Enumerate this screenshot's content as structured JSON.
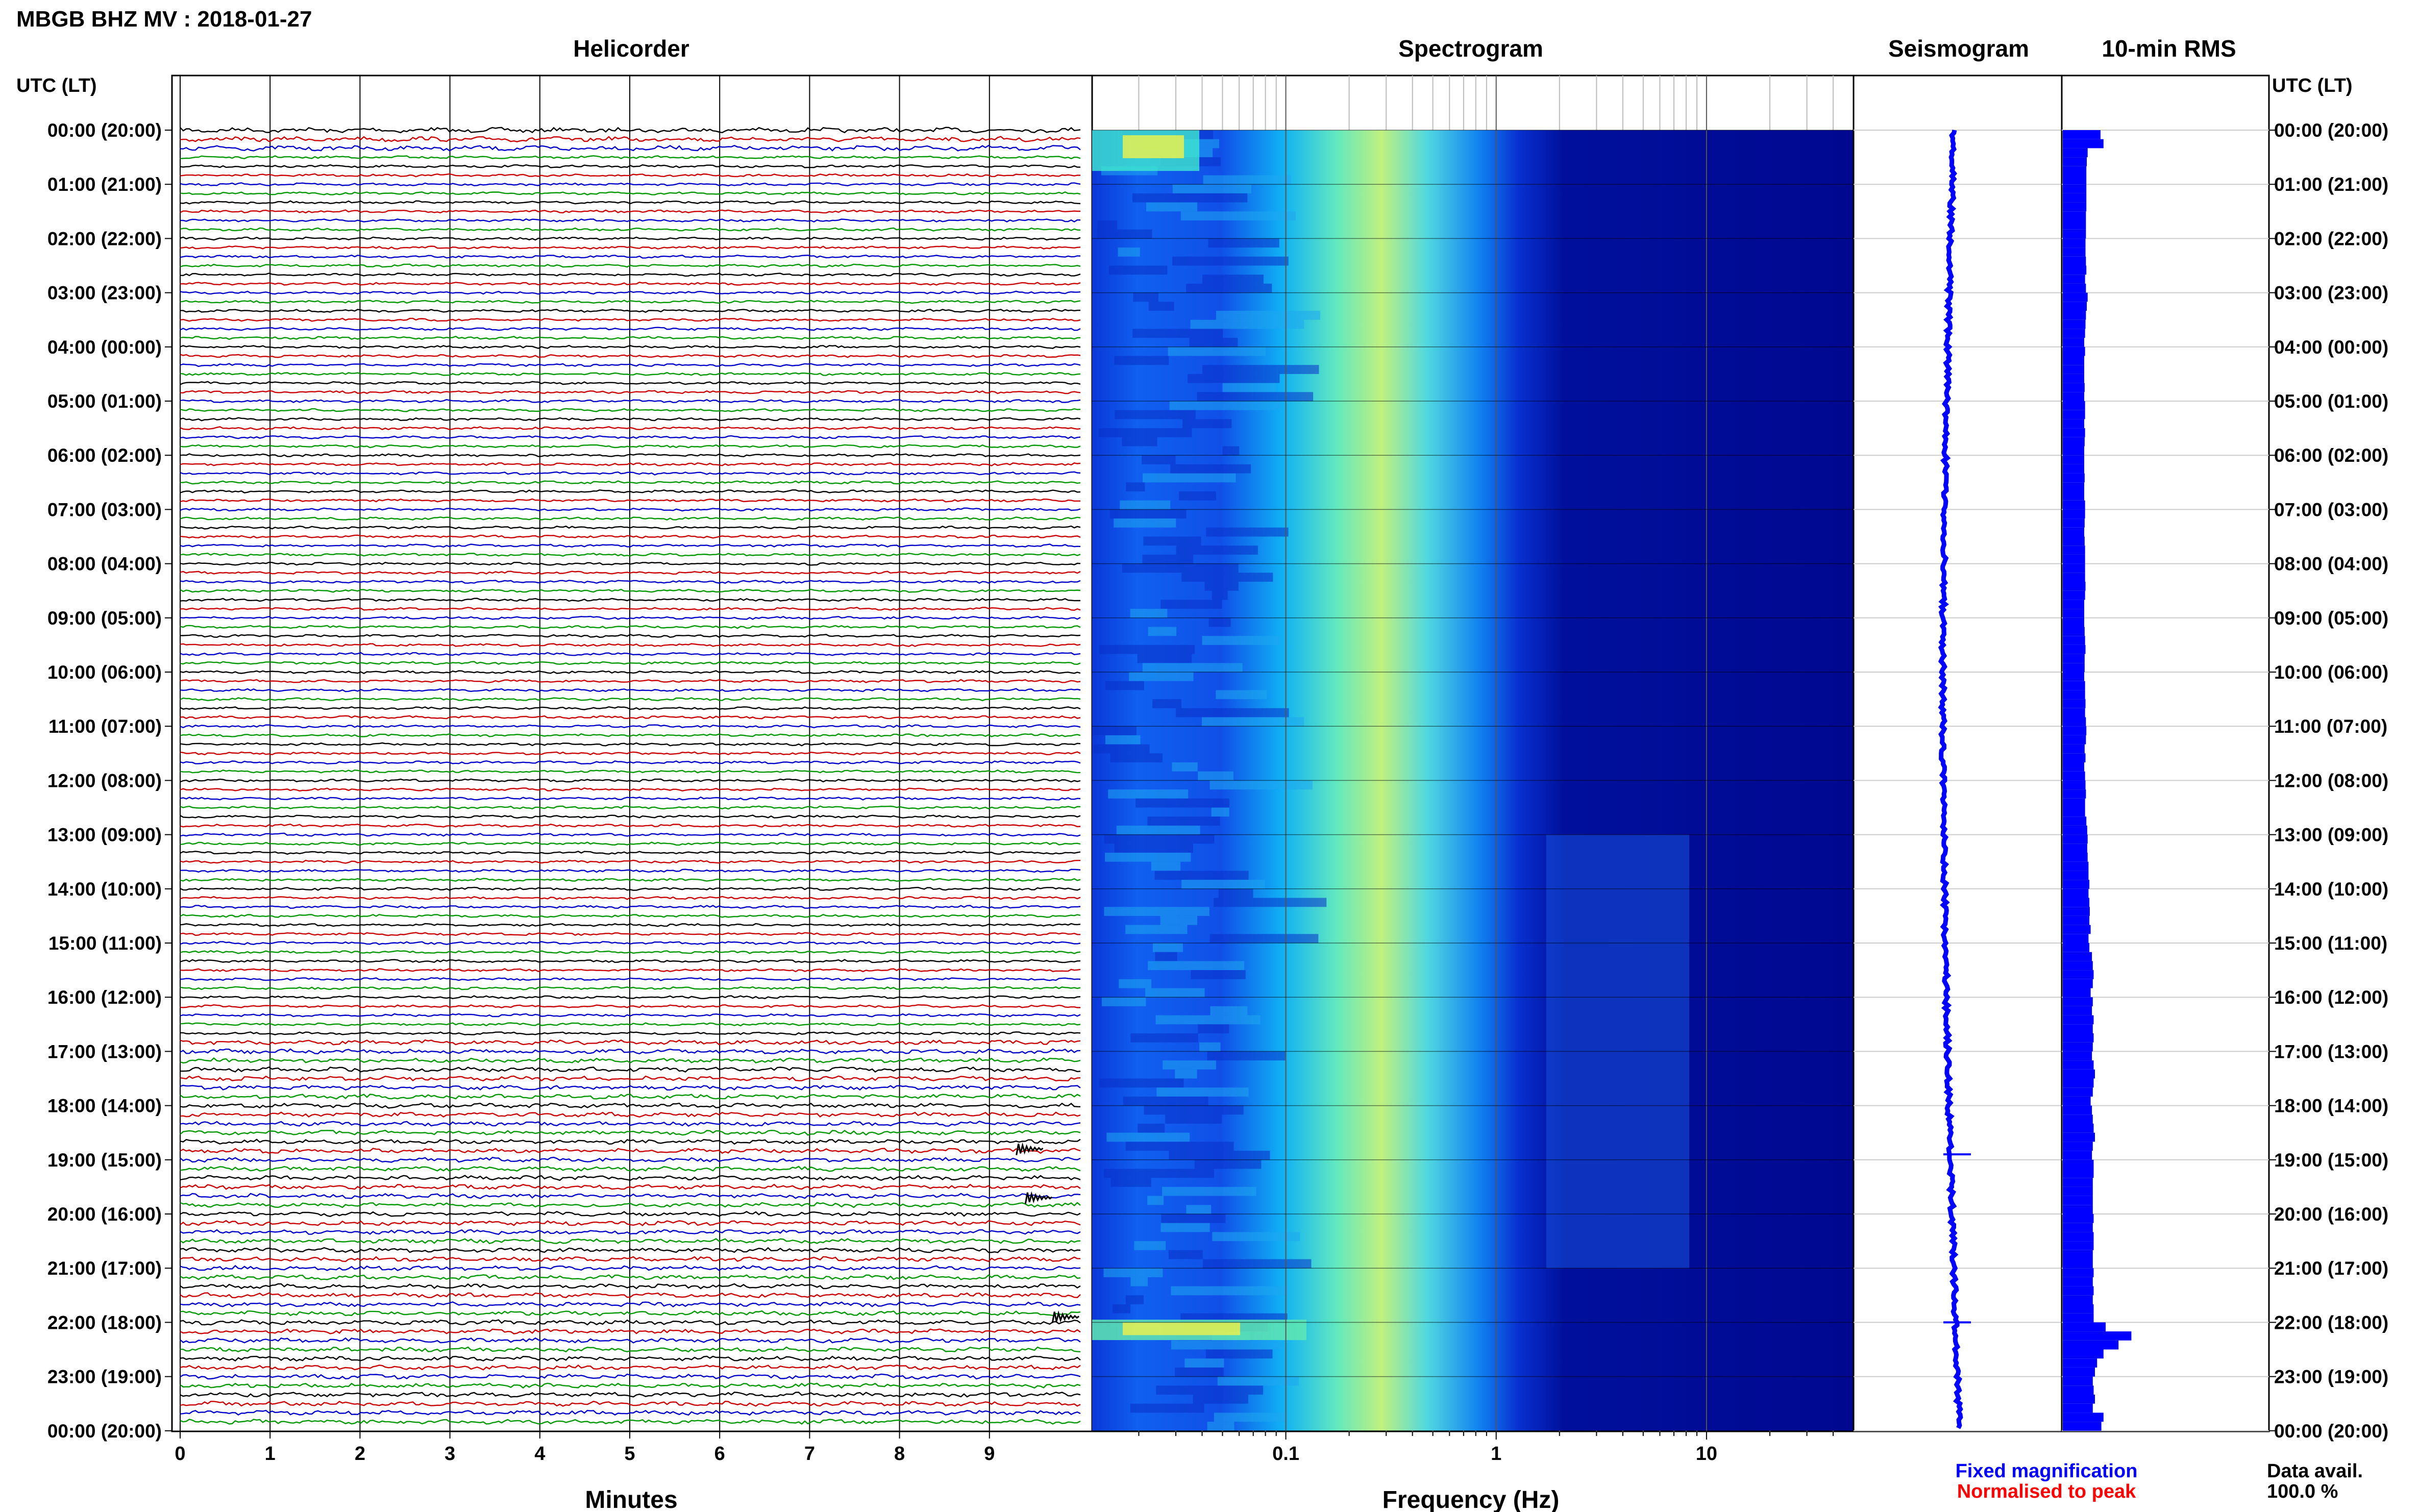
{
  "header": {
    "station_title": "MBGB BHZ MV : 2018-01-27"
  },
  "panels": {
    "helicorder": "Helicorder",
    "spectrogram": "Spectrogram",
    "seismogram": "Seismogram",
    "rms": "10-min RMS"
  },
  "axis": {
    "time_label_left": "UTC (LT)",
    "time_label_right": "UTC (LT)",
    "minutes_label": "Minutes",
    "frequency_label": "Frequency (Hz)"
  },
  "legend": {
    "fixed": "Fixed magnification",
    "fixed_color": "#0000ff",
    "normalised": "Normalised to peak",
    "normalised_color": "#ff0000"
  },
  "data_avail": {
    "label": "Data avail.",
    "value": "100.0 %"
  },
  "colors": {
    "trace_cycle": [
      "#000000",
      "#cc0000",
      "#0000cc",
      "#009900"
    ],
    "rms_bar": "#0000ff",
    "spectrogram_low": "#00008b",
    "spectrogram_mid": "#00c8ff",
    "spectrogram_high": "#ffff00"
  },
  "chart_data": [
    {
      "type": "line",
      "title": "Helicorder",
      "xlabel": "Minutes",
      "ylabel": "UTC (LT)",
      "x_ticks": [
        "0",
        "1",
        "2",
        "3",
        "4",
        "5",
        "6",
        "7",
        "8",
        "9"
      ],
      "xlim": [
        0,
        10
      ],
      "y_ticks": [
        "00:00 (20:00)",
        "01:00 (21:00)",
        "02:00 (22:00)",
        "03:00 (23:00)",
        "04:00 (00:00)",
        "05:00 (01:00)",
        "06:00 (02:00)",
        "07:00 (03:00)",
        "08:00 (04:00)",
        "09:00 (05:00)",
        "10:00 (06:00)",
        "11:00 (07:00)",
        "12:00 (08:00)",
        "13:00 (09:00)",
        "14:00 (10:00)",
        "15:00 (11:00)",
        "16:00 (12:00)",
        "17:00 (13:00)",
        "18:00 (14:00)",
        "19:00 (15:00)",
        "20:00 (16:00)",
        "21:00 (17:00)",
        "22:00 (18:00)",
        "23:00 (19:00)",
        "00:00 (20:00)"
      ],
      "traces": 144,
      "events": [
        {
          "hour": 18.8,
          "minute": 9.3
        },
        {
          "hour": 19.7,
          "minute": 9.4
        },
        {
          "hour": 21.9,
          "minute": 9.7
        }
      ]
    },
    {
      "type": "heatmap",
      "title": "Spectrogram",
      "xlabel": "Frequency (Hz)",
      "x_scale": "log",
      "x_ticks": [
        "0.1",
        "1",
        "10"
      ],
      "xlim": [
        0.012,
        50
      ]
    },
    {
      "type": "line",
      "title": "Seismogram"
    },
    {
      "type": "bar",
      "title": "10-min RMS",
      "orientation": "horizontal",
      "values": [
        0.88,
        0.95,
        0.58,
        0.56,
        0.55,
        0.55,
        0.55,
        0.55,
        0.55,
        0.54,
        0.54,
        0.54,
        0.53,
        0.53,
        0.54,
        0.55,
        0.52,
        0.54,
        0.58,
        0.56,
        0.54,
        0.53,
        0.52,
        0.5,
        0.52,
        0.5,
        0.5,
        0.5,
        0.51,
        0.5,
        0.52,
        0.52,
        0.5,
        0.52,
        0.51,
        0.5,
        0.5,
        0.5,
        0.51,
        0.5,
        0.5,
        0.52,
        0.52,
        0.51,
        0.5,
        0.51,
        0.52,
        0.52,
        0.52,
        0.52,
        0.53,
        0.52,
        0.5,
        0.5,
        0.5,
        0.51,
        0.52,
        0.53,
        0.51,
        0.51,
        0.5,
        0.52,
        0.52,
        0.53,
        0.52,
        0.54,
        0.55,
        0.54,
        0.51,
        0.53,
        0.5,
        0.52,
        0.53,
        0.54,
        0.52,
        0.52,
        0.55,
        0.57,
        0.58,
        0.57,
        0.58,
        0.6,
        0.6,
        0.62,
        0.6,
        0.62,
        0.63,
        0.62,
        0.65,
        0.6,
        0.62,
        0.68,
        0.7,
        0.72,
        0.7,
        0.65,
        0.7,
        0.68,
        0.72,
        0.7,
        0.72,
        0.7,
        0.68,
        0.72,
        0.75,
        0.72,
        0.7,
        0.65,
        0.68,
        0.7,
        0.72,
        0.75,
        0.7,
        0.68,
        0.72,
        0.72,
        0.7,
        0.7,
        0.7,
        0.7,
        0.72,
        0.7,
        0.72,
        0.72,
        0.7,
        0.7,
        0.72,
        0.7,
        0.72,
        0.7,
        0.72,
        0.72,
        1.0,
        1.6,
        1.3,
        0.95,
        0.8,
        0.75,
        0.7,
        0.72,
        0.75,
        0.7,
        0.95,
        0.9
      ]
    }
  ]
}
